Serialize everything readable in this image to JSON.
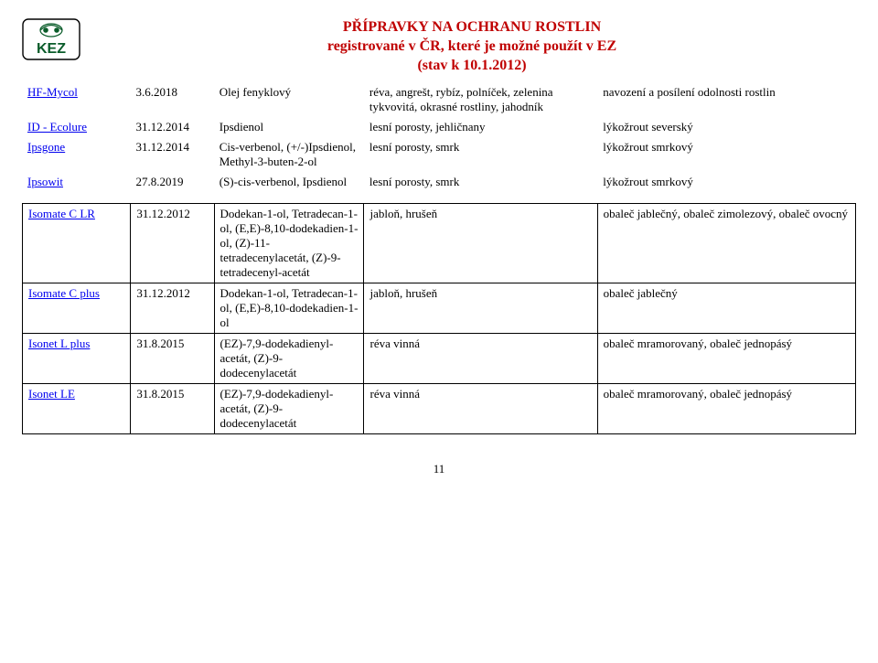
{
  "header": {
    "title_line1": "PŘÍPRAVKY NA OCHRANU ROSTLIN",
    "title_line2": "registrované v ČR, které je možné použít v EZ",
    "title_line3": "(stav k 10.1.2012)"
  },
  "table1": {
    "rows": [
      {
        "name": "HF-Mycol",
        "date": "3.6.2018",
        "sub": "Olej fenyklový",
        "crop": "réva, angrešt, rybíz, polníček, zelenina tykvovitá, okrasné rostliny, jahodník",
        "eff": "navození a posílení odolnosti rostlin"
      },
      {
        "name": "ID - Ecolure",
        "date": "31.12.2014",
        "sub": "Ipsdienol",
        "crop": "lesní porosty, jehličnany",
        "eff": "lýkožrout severský"
      },
      {
        "name": "Ipsgone",
        "date": "31.12.2014",
        "sub": "Cis-verbenol, (+/-)Ipsdienol, Methyl-3-buten-2-ol",
        "crop": "lesní porosty, smrk",
        "eff": "lýkožrout smrkový"
      },
      {
        "name": "Ipsowit",
        "date": "27.8.2019",
        "sub": "(S)-cis-verbenol, Ipsdienol",
        "crop": "lesní porosty, smrk",
        "eff": "lýkožrout smrkový"
      }
    ]
  },
  "table2": {
    "rows": [
      {
        "name": "Isomate C LR",
        "date": "31.12.2012",
        "sub": "Dodekan-1-ol, Tetradecan-1-ol, (E,E)-8,10-dodekadien-1-ol, (Z)-11-tetradecenylacetát, (Z)-9-tetradecenyl-acetát",
        "crop": "jabloň, hrušeň",
        "eff": "obaleč jablečný, obaleč zimolezový, obaleč ovocný"
      },
      {
        "name": "Isomate C plus",
        "date": "31.12.2012",
        "sub": "Dodekan-1-ol, Tetradecan-1-ol, (E,E)-8,10-dodekadien-1-ol",
        "crop": "jabloň, hrušeň",
        "eff": "obaleč jablečný"
      },
      {
        "name": "Isonet L plus",
        "date": "31.8.2015",
        "sub": "(EZ)-7,9-dodekadienyl-acetát, (Z)-9-dodecenylacetát",
        "crop": "réva vinná",
        "eff": "obaleč mramorovaný, obaleč jednopásý"
      },
      {
        "name": "Isonet LE",
        "date": "31.8.2015",
        "sub": "(EZ)-7,9-dodekadienyl-acetát, (Z)-9-dodecenylacetát",
        "crop": "réva vinná",
        "eff": "obaleč mramorovaný, obaleč jednopásý"
      }
    ]
  },
  "page_number": "11"
}
